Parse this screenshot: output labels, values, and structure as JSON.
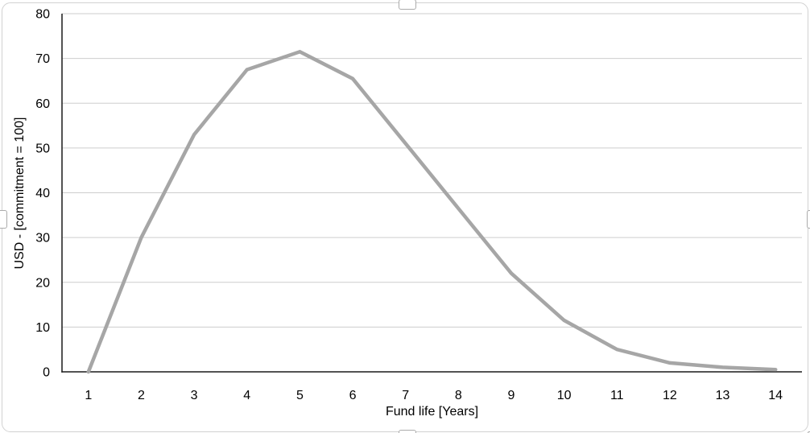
{
  "chart_data": {
    "type": "line",
    "categories": [
      1,
      2,
      3,
      4,
      5,
      6,
      7,
      8,
      9,
      10,
      11,
      12,
      13,
      14
    ],
    "values": [
      0,
      30,
      53,
      67.5,
      71.5,
      65.5,
      51,
      36.5,
      22,
      11.5,
      5,
      2,
      1,
      0.5
    ],
    "title": "",
    "xlabel": "Fund life [Years]",
    "ylabel": "USD - [commitment = 100]",
    "ylim": [
      0,
      80
    ],
    "ytick_step": 10,
    "grid": true,
    "legend": false,
    "colors": {
      "line": "#a6a6a6",
      "gridline": "#cdcdcd",
      "axis": "#1a1a1a",
      "text": "#000000",
      "frame": "#d2d2d2"
    }
  }
}
